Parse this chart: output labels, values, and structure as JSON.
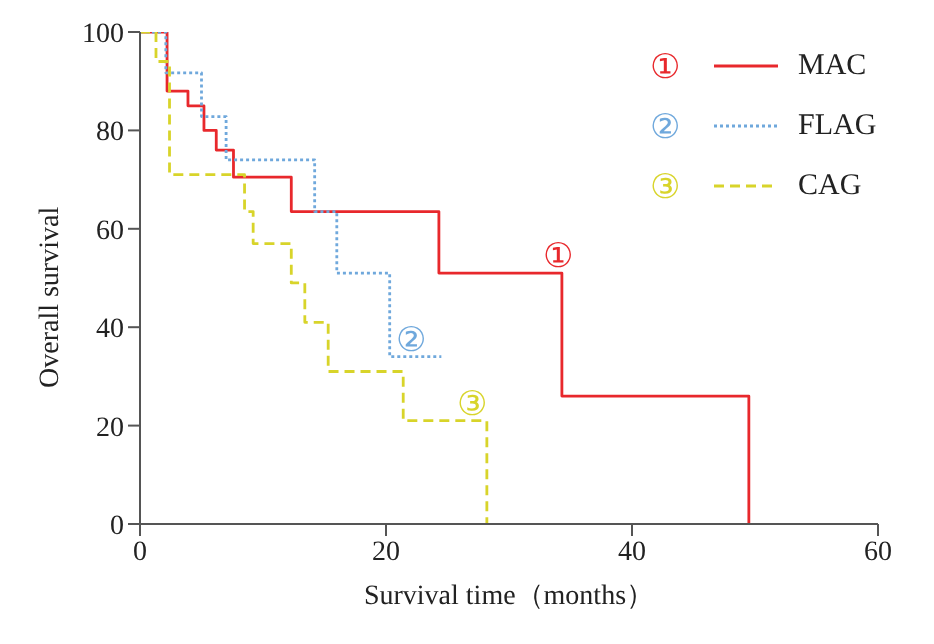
{
  "chart_data": {
    "type": "step",
    "xlabel": "Survival time（months）",
    "ylabel": "Overall survival",
    "xlim": [
      0,
      60
    ],
    "xticks": [
      0,
      20,
      40,
      60
    ],
    "ylim": [
      0,
      100
    ],
    "yticks": [
      0,
      20,
      40,
      60,
      80,
      100
    ],
    "grid": false,
    "legend": "top right",
    "marker": "none",
    "series": [
      {
        "name": "MAC",
        "color": "#e8282c",
        "line_style": "solid",
        "x": [
          0,
          2.2,
          3.9,
          5.2,
          6.2,
          7.6,
          12.3,
          24.3,
          34.3,
          49.5
        ],
        "values": [
          100,
          88,
          85,
          80,
          76,
          70.5,
          63.5,
          51,
          26,
          0
        ]
      },
      {
        "name": "FLAG",
        "color": "#6fa8dc",
        "line_style": "dotted",
        "x": [
          0,
          2.1,
          5,
          7,
          14.2,
          16,
          20.3,
          24.5
        ],
        "values": [
          100,
          91.7,
          82.8,
          74,
          63.5,
          51,
          34,
          34
        ]
      },
      {
        "name": "CAG",
        "color": "#d8d42a",
        "line_style": "dashed",
        "x": [
          0,
          1.3,
          2.4,
          8.5,
          9.2,
          12.3,
          13.4,
          15.3,
          21.4,
          28.2
        ],
        "values": [
          100,
          94,
          71,
          63.5,
          57,
          49,
          41,
          31,
          21,
          0
        ]
      }
    ],
    "annotations": [
      {
        "text": "①",
        "x": 34,
        "y": 51
      },
      {
        "text": "②",
        "x": 22,
        "y": 34
      },
      {
        "text": "③",
        "x": 27,
        "y": 21
      }
    ]
  }
}
